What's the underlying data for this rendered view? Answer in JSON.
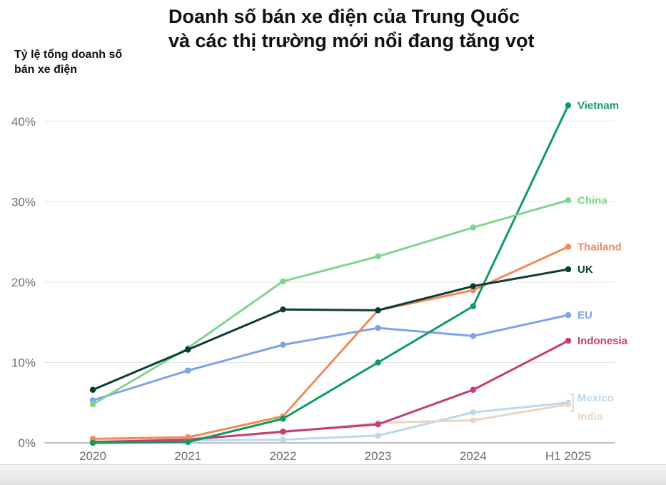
{
  "chart_data": {
    "type": "line",
    "title": "Doanh số bán xe điện của Trung Quốc\nvà các thị trường mới nổi đang tăng vọt",
    "ylabel": "Tỷ lệ tổng doanh số\nbán xe điện",
    "xlabel": "",
    "categories": [
      "2020",
      "2021",
      "2022",
      "2023",
      "2024",
      "H1 2025"
    ],
    "ylim": [
      0,
      45
    ],
    "yticks": [
      0,
      10,
      20,
      30,
      40
    ],
    "ytick_labels": [
      "0%",
      "10%",
      "20%",
      "30%",
      "40%"
    ],
    "grid": true,
    "series": [
      {
        "name": "Mexico",
        "color": "#b9d9ef",
        "values": [
          0.2,
          0.3,
          0.4,
          0.9,
          3.8,
          5.0
        ]
      },
      {
        "name": "India",
        "color": "#ead6c6",
        "values": [
          0.2,
          0.5,
          1.3,
          2.5,
          2.8,
          4.8
        ]
      },
      {
        "name": "Indonesia",
        "color": "#c43d7a",
        "values": [
          0.1,
          0.4,
          1.4,
          2.3,
          6.6,
          12.7
        ]
      },
      {
        "name": "EU",
        "color": "#7ca4ec",
        "values": [
          5.3,
          9.0,
          12.2,
          14.3,
          13.3,
          15.9
        ]
      },
      {
        "name": "Thailand",
        "color": "#f28b55",
        "values": [
          0.5,
          0.7,
          3.3,
          16.5,
          19.0,
          24.4
        ]
      },
      {
        "name": "Vietnam",
        "color": "#0f9a63",
        "values": [
          0.0,
          0.1,
          3.0,
          10.0,
          17.0,
          42.0
        ]
      },
      {
        "name": "China",
        "color": "#7fd58a",
        "values": [
          4.8,
          11.8,
          20.1,
          23.2,
          26.8,
          30.2
        ]
      },
      {
        "name": "UK",
        "color": "#0b3f33",
        "values": [
          6.6,
          11.6,
          16.6,
          16.5,
          19.5,
          21.6
        ]
      }
    ]
  }
}
